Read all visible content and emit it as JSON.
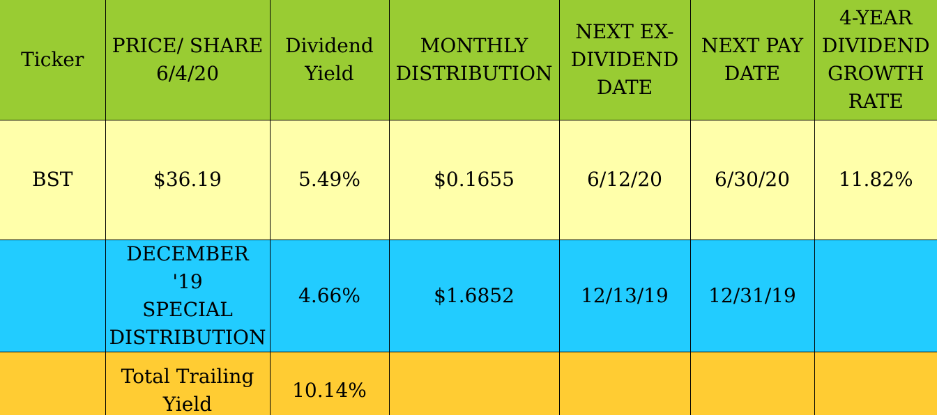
{
  "colors": {
    "header_bg": "#99cc33",
    "row_bst_bg": "#ffffaa",
    "row_special_bg": "#22ccff",
    "row_total_bg": "#ffcc33"
  },
  "table": {
    "headers": [
      "Ticker",
      "PRICE/ SHARE\n6/4/20",
      "Dividend\nYield",
      "MONTHLY\nDISTRIBUTION",
      "NEXT EX-\nDIVIDEND\nDATE",
      "NEXT PAY\nDATE",
      "4-YEAR\nDIVIDEND\nGROWTH\nRATE"
    ],
    "rows": [
      [
        "BST",
        "$36.19",
        "5.49%",
        "$0.1655",
        "6/12/20",
        "6/30/20",
        "11.82%"
      ],
      [
        "",
        "DECEMBER '19\nSPECIAL\nDISTRIBUTION",
        "4.66%",
        "$1.6852",
        "12/13/19",
        "12/31/19",
        ""
      ],
      [
        "",
        "Total Trailing\nYield",
        "10.14%",
        "",
        "",
        "",
        ""
      ]
    ]
  }
}
